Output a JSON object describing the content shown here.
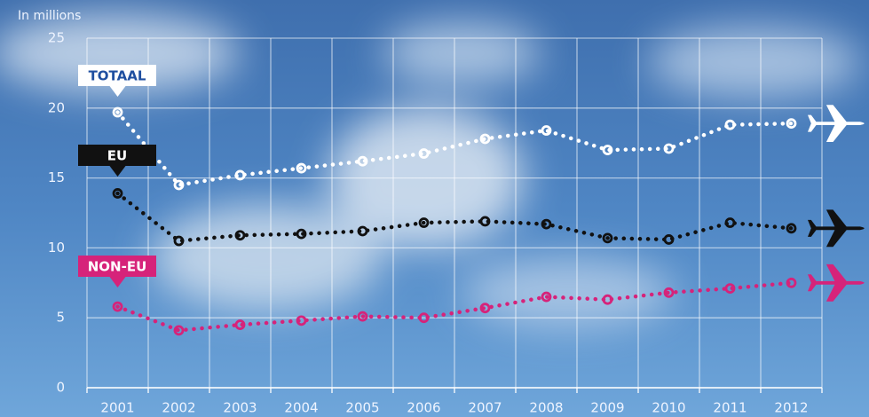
{
  "chart_data": {
    "type": "line",
    "y_label": "In millions",
    "categories": [
      "2001",
      "2002",
      "2003",
      "2004",
      "2005",
      "2006",
      "2007",
      "2008",
      "2009",
      "2010",
      "2011",
      "2012"
    ],
    "series": [
      {
        "name": "TOTAAL",
        "color": "#ffffff",
        "values": [
          19.7,
          14.5,
          15.2,
          15.7,
          16.2,
          16.75,
          17.8,
          18.4,
          17.0,
          17.1,
          18.8,
          18.9
        ]
      },
      {
        "name": "EU",
        "color": "#111111",
        "values": [
          13.9,
          10.5,
          10.9,
          11.0,
          11.2,
          11.8,
          11.9,
          11.7,
          10.7,
          10.6,
          11.8,
          11.4
        ]
      },
      {
        "name": "NON-EU",
        "color": "#d6237a",
        "values": [
          5.8,
          4.1,
          4.5,
          4.8,
          5.1,
          5.0,
          5.7,
          6.5,
          6.3,
          6.8,
          7.1,
          7.5
        ]
      }
    ],
    "ylim": [
      0,
      25
    ],
    "yticks": [
      0,
      5,
      10,
      15,
      20,
      25
    ],
    "grid": true
  }
}
